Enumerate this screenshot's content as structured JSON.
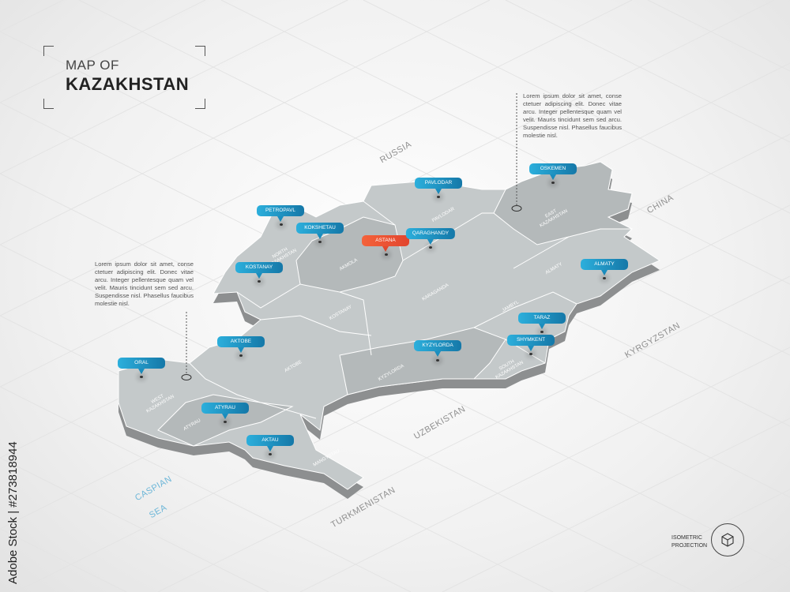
{
  "title": {
    "small": "MAP OF",
    "big": "KAZAKHSTAN"
  },
  "notes": [
    {
      "text": "Lorem ipsum dolor sit amet, conse ctetuer adipiscing elit. Donec vitae arcu. Integer pellentesque quam vel velit. Mauris tincidunt sem sed arcu. Suspendisse nisl. Phasellus faucibus molestie nisl."
    },
    {
      "text": "Lorem ipsum dolor sit amet, conse ctetuer adipiscing elit. Donec vitae arcu. Integer pellentesque quam vel velit. Mauris tincidunt sem sed arcu. Suspendisse nisl. Phasellus faucibus molestie nisl."
    }
  ],
  "cities": [
    {
      "name": "PETROPAVL"
    },
    {
      "name": "KOKSHETAU"
    },
    {
      "name": "ASTANA",
      "capital": true
    },
    {
      "name": "QARAGHANDY"
    },
    {
      "name": "PAVLODAR"
    },
    {
      "name": "OSKEMEN"
    },
    {
      "name": "ALMATY"
    },
    {
      "name": "TARAZ"
    },
    {
      "name": "SHYMKENT"
    },
    {
      "name": "KYZYLORDA"
    },
    {
      "name": "KOSTANAY"
    },
    {
      "name": "AKTOBE"
    },
    {
      "name": "ORAL"
    },
    {
      "name": "ATYRAU"
    },
    {
      "name": "AKTAU"
    }
  ],
  "regions": [
    "NORTH KAZAKHSTAN",
    "AKMOLA",
    "PAVLODAR",
    "KARAGANDA",
    "KOSTANAY",
    "EAST KAZAKHSTAN",
    "ALMATY",
    "JAMBYL",
    "SOUTH KAZAKHSTAN",
    "KYZYLORDA",
    "AKTOBE",
    "WEST KAZAKHSTAN",
    "ATYRAU",
    "MANGYSTAU"
  ],
  "countries": [
    "RUSSIA",
    "CHINA",
    "KYRGYZSTAN",
    "UZBEKISTAN",
    "TURKMENISTAN"
  ],
  "sea": [
    "CASPIAN",
    "SEA"
  ],
  "legend": {
    "line1": "ISOMETRIC",
    "line2": "PROJECTION",
    "icon": "cube-icon"
  },
  "watermark": "Adobe Stock | #273818944",
  "colors": {
    "land": "#c4c9ca",
    "land_dark": "#b2b7b8",
    "shadow": "#8d8f90",
    "pin": "#1c8fc0",
    "capital_pin": "#e34b30",
    "sea_label": "#6cb6d8"
  }
}
